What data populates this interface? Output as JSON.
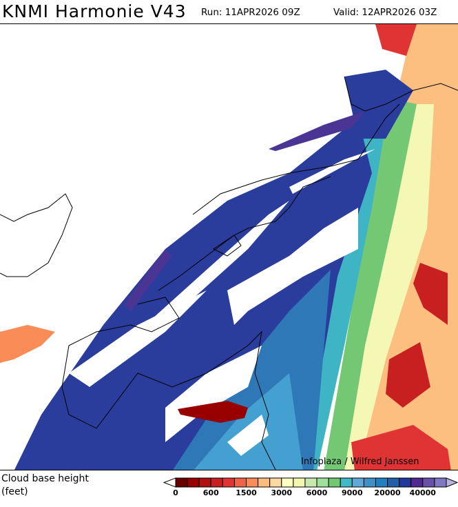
{
  "header": {
    "title": "KNMI Harmonie V43",
    "run": "Run: 11APR2026 09Z",
    "valid": "Valid: 12APR2026 03Z"
  },
  "map": {
    "credit": "Infoplaza / Wilfred Janssen",
    "background": "#ffffff",
    "coastline_color": "#000000"
  },
  "legend": {
    "label_line1": "Cloud base height",
    "label_line2": "(feet)",
    "ticks": [
      "0",
      "600",
      "1500",
      "3000",
      "6000",
      "9000",
      "20000",
      "40000"
    ],
    "colors": [
      "#680000",
      "#980000",
      "#b01010",
      "#c82020",
      "#e03434",
      "#f06446",
      "#fa8c58",
      "#fcbc7c",
      "#fdd8a0",
      "#ffffc0",
      "#f0f8b0",
      "#c8e8b0",
      "#a0e09c",
      "#70c870",
      "#40b8c8",
      "#60a8d8",
      "#4090c8",
      "#2080c0",
      "#2060a8",
      "#203898",
      "#502890",
      "#6850a8",
      "#8078c0"
    ],
    "under_color": "#ffffff",
    "over_color": "#b4b4dc"
  }
}
